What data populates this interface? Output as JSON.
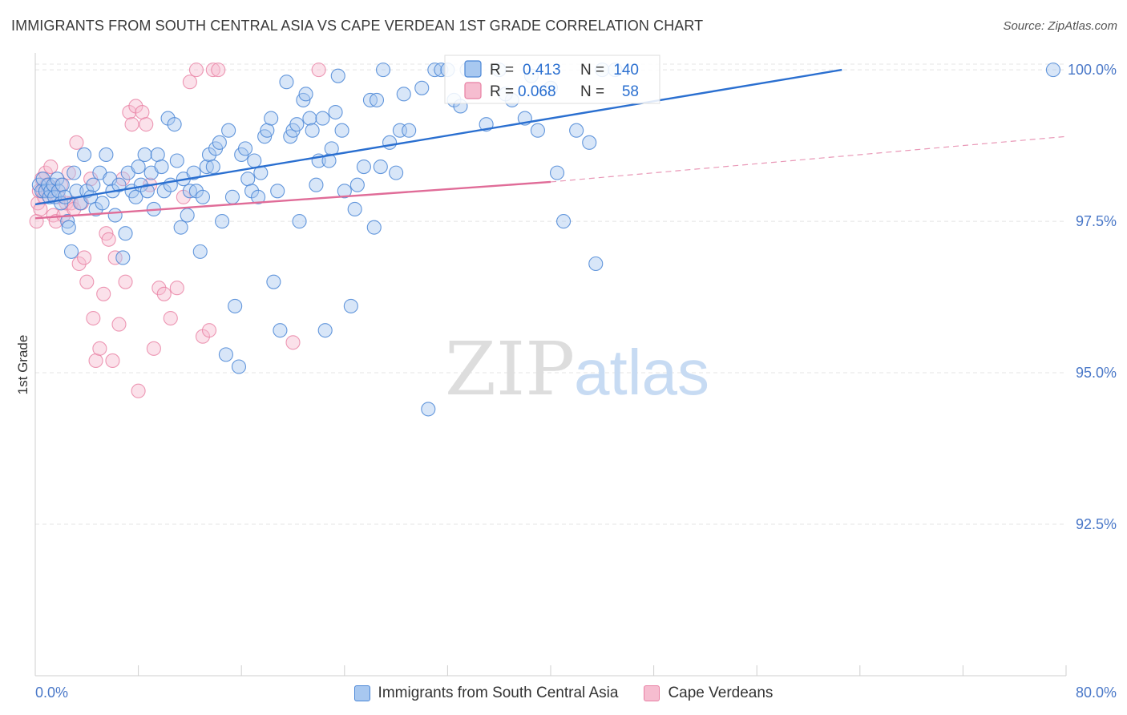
{
  "header": {
    "title": "IMMIGRANTS FROM SOUTH CENTRAL ASIA VS CAPE VERDEAN 1ST GRADE CORRELATION CHART",
    "source": "Source: ZipAtlas.com"
  },
  "watermark": {
    "zip": "ZIP",
    "atlas": "atlas"
  },
  "colors": {
    "blue_fill": "#a8c8f0",
    "blue_stroke": "#4a86d6",
    "blue_line": "#2a6fd0",
    "pink_fill": "#f6bdd0",
    "pink_stroke": "#e87fa3",
    "pink_line": "#e06c98",
    "axis_text": "#4a78c8"
  },
  "chart_data": {
    "type": "scatter",
    "title": "IMMIGRANTS FROM SOUTH CENTRAL ASIA VS CAPE VERDEAN 1ST GRADE CORRELATION CHART",
    "xlabel": "",
    "ylabel": "1st Grade",
    "xlim": [
      0,
      80
    ],
    "ylim": [
      90.0,
      100.2
    ],
    "x_tick_labels": {
      "min": "0.0%",
      "max": "80.0%"
    },
    "y_ticks": [
      {
        "value": 100.0,
        "label": "100.0%"
      },
      {
        "value": 97.5,
        "label": "97.5%"
      },
      {
        "value": 95.0,
        "label": "95.0%"
      },
      {
        "value": 92.5,
        "label": "92.5%"
      }
    ],
    "grid": true,
    "legend_position": "top-center",
    "stats": [
      {
        "r_label": "R =",
        "r_value": "0.413",
        "n_label": "N =",
        "n_value": "140"
      },
      {
        "r_label": "R =",
        "r_value": "0.068",
        "n_label": "N =",
        "n_value": "58"
      }
    ],
    "series": [
      {
        "name": "Immigrants from South Central Asia",
        "color": "#4a86d6",
        "trend": {
          "x0": 0,
          "y0": 97.78,
          "x1": 62.6,
          "y1": 100.0
        },
        "points": [
          [
            0.3,
            98.1
          ],
          [
            0.5,
            98.0
          ],
          [
            0.6,
            98.2
          ],
          [
            0.8,
            98.0
          ],
          [
            1.0,
            98.1
          ],
          [
            1.1,
            97.9
          ],
          [
            1.2,
            98.0
          ],
          [
            1.4,
            98.1
          ],
          [
            1.5,
            97.9
          ],
          [
            1.7,
            98.2
          ],
          [
            1.8,
            98.0
          ],
          [
            2.0,
            97.8
          ],
          [
            2.1,
            98.1
          ],
          [
            2.3,
            97.9
          ],
          [
            2.5,
            97.5
          ],
          [
            2.6,
            97.4
          ],
          [
            2.8,
            97.0
          ],
          [
            3.0,
            98.3
          ],
          [
            3.2,
            98.0
          ],
          [
            3.5,
            97.8
          ],
          [
            3.8,
            98.6
          ],
          [
            4.0,
            98.0
          ],
          [
            4.3,
            97.9
          ],
          [
            4.5,
            98.1
          ],
          [
            4.7,
            97.7
          ],
          [
            5.0,
            98.3
          ],
          [
            5.2,
            97.8
          ],
          [
            5.5,
            98.6
          ],
          [
            5.8,
            98.2
          ],
          [
            6.0,
            98.0
          ],
          [
            6.2,
            97.6
          ],
          [
            6.5,
            98.1
          ],
          [
            6.8,
            96.9
          ],
          [
            7.0,
            97.3
          ],
          [
            7.2,
            98.3
          ],
          [
            7.5,
            98.0
          ],
          [
            7.8,
            97.9
          ],
          [
            8.0,
            98.4
          ],
          [
            8.2,
            98.1
          ],
          [
            8.5,
            98.6
          ],
          [
            8.7,
            98.0
          ],
          [
            9.0,
            98.3
          ],
          [
            9.2,
            97.7
          ],
          [
            9.5,
            98.6
          ],
          [
            9.8,
            98.4
          ],
          [
            10.0,
            98.0
          ],
          [
            10.3,
            99.2
          ],
          [
            10.5,
            98.1
          ],
          [
            10.8,
            99.1
          ],
          [
            11.0,
            98.5
          ],
          [
            11.3,
            97.4
          ],
          [
            11.5,
            98.2
          ],
          [
            11.8,
            97.6
          ],
          [
            12.0,
            98.0
          ],
          [
            12.3,
            98.3
          ],
          [
            12.5,
            98.0
          ],
          [
            12.8,
            97.0
          ],
          [
            13.0,
            97.9
          ],
          [
            13.3,
            98.4
          ],
          [
            13.5,
            98.6
          ],
          [
            13.8,
            98.4
          ],
          [
            14.0,
            98.7
          ],
          [
            14.3,
            98.8
          ],
          [
            14.5,
            97.5
          ],
          [
            14.8,
            95.3
          ],
          [
            15.0,
            99.0
          ],
          [
            15.3,
            97.9
          ],
          [
            15.5,
            96.1
          ],
          [
            15.8,
            95.1
          ],
          [
            16.0,
            98.6
          ],
          [
            16.3,
            98.7
          ],
          [
            16.5,
            98.2
          ],
          [
            16.8,
            98.0
          ],
          [
            17.0,
            98.5
          ],
          [
            17.3,
            97.9
          ],
          [
            17.5,
            98.3
          ],
          [
            17.8,
            98.9
          ],
          [
            18.0,
            99.0
          ],
          [
            18.3,
            99.2
          ],
          [
            18.5,
            96.5
          ],
          [
            18.8,
            98.0
          ],
          [
            19.0,
            95.7
          ],
          [
            19.5,
            99.8
          ],
          [
            19.8,
            98.9
          ],
          [
            20.0,
            99.0
          ],
          [
            20.3,
            99.1
          ],
          [
            20.5,
            97.5
          ],
          [
            20.8,
            99.5
          ],
          [
            21.0,
            99.6
          ],
          [
            21.3,
            99.2
          ],
          [
            21.5,
            99.0
          ],
          [
            21.8,
            98.1
          ],
          [
            22.0,
            98.5
          ],
          [
            22.3,
            99.2
          ],
          [
            22.5,
            95.7
          ],
          [
            22.8,
            98.5
          ],
          [
            23.0,
            98.7
          ],
          [
            23.3,
            99.3
          ],
          [
            23.5,
            99.9
          ],
          [
            23.8,
            99.0
          ],
          [
            24.0,
            98.0
          ],
          [
            24.5,
            96.1
          ],
          [
            24.8,
            97.7
          ],
          [
            25.0,
            98.1
          ],
          [
            25.5,
            98.4
          ],
          [
            26.0,
            99.5
          ],
          [
            26.3,
            97.4
          ],
          [
            26.5,
            99.5
          ],
          [
            26.8,
            98.4
          ],
          [
            27.0,
            100.0
          ],
          [
            27.5,
            98.8
          ],
          [
            28.0,
            98.3
          ],
          [
            28.3,
            99.0
          ],
          [
            28.6,
            99.6
          ],
          [
            29.0,
            99.0
          ],
          [
            30.0,
            99.7
          ],
          [
            30.5,
            94.4
          ],
          [
            31.0,
            100.0
          ],
          [
            31.5,
            100.0
          ],
          [
            32.0,
            100.0
          ],
          [
            32.5,
            99.5
          ],
          [
            33.0,
            99.4
          ],
          [
            33.5,
            100.0
          ],
          [
            34.0,
            100.0
          ],
          [
            35.0,
            99.1
          ],
          [
            36.0,
            100.0
          ],
          [
            37.0,
            99.5
          ],
          [
            38.0,
            99.2
          ],
          [
            39.0,
            99.0
          ],
          [
            40.0,
            99.7
          ],
          [
            40.5,
            98.3
          ],
          [
            41.0,
            97.5
          ],
          [
            42.0,
            99.0
          ],
          [
            43.0,
            98.8
          ],
          [
            43.5,
            96.8
          ],
          [
            44.0,
            100.0
          ],
          [
            45.0,
            100.0
          ],
          [
            38.5,
            99.9
          ],
          [
            36.5,
            99.6
          ],
          [
            79.0,
            100.0
          ]
        ]
      },
      {
        "name": "Cape Verdeans",
        "color": "#e87fa3",
        "trend": {
          "x0": 0,
          "y0": 97.55,
          "x1": 40,
          "y1": 98.15
        },
        "trend_ext": {
          "x0": 40,
          "y0": 98.15,
          "x1": 80,
          "y1": 98.9
        },
        "points": [
          [
            0.1,
            97.5
          ],
          [
            0.2,
            97.8
          ],
          [
            0.3,
            98.0
          ],
          [
            0.4,
            97.7
          ],
          [
            0.5,
            98.2
          ],
          [
            0.6,
            98.0
          ],
          [
            0.7,
            97.9
          ],
          [
            0.8,
            98.3
          ],
          [
            0.9,
            98.1
          ],
          [
            1.0,
            98.0
          ],
          [
            1.2,
            98.4
          ],
          [
            1.4,
            97.6
          ],
          [
            1.6,
            97.5
          ],
          [
            1.8,
            97.9
          ],
          [
            2.0,
            98.1
          ],
          [
            2.2,
            97.6
          ],
          [
            2.4,
            97.8
          ],
          [
            2.6,
            98.3
          ],
          [
            2.8,
            97.8
          ],
          [
            3.0,
            97.7
          ],
          [
            3.2,
            98.8
          ],
          [
            3.4,
            96.8
          ],
          [
            3.6,
            97.8
          ],
          [
            3.8,
            96.9
          ],
          [
            4.0,
            96.5
          ],
          [
            4.3,
            98.2
          ],
          [
            4.5,
            95.9
          ],
          [
            4.7,
            95.2
          ],
          [
            5.0,
            95.4
          ],
          [
            5.3,
            96.3
          ],
          [
            5.5,
            97.3
          ],
          [
            5.7,
            97.2
          ],
          [
            6.0,
            95.2
          ],
          [
            6.2,
            96.9
          ],
          [
            6.5,
            95.8
          ],
          [
            6.8,
            98.2
          ],
          [
            7.0,
            96.5
          ],
          [
            7.3,
            99.3
          ],
          [
            7.5,
            99.1
          ],
          [
            7.8,
            99.4
          ],
          [
            8.0,
            94.7
          ],
          [
            8.3,
            99.3
          ],
          [
            8.6,
            99.1
          ],
          [
            8.9,
            98.1
          ],
          [
            9.2,
            95.4
          ],
          [
            9.6,
            96.4
          ],
          [
            10.0,
            96.3
          ],
          [
            10.5,
            95.9
          ],
          [
            11.0,
            96.4
          ],
          [
            11.5,
            97.9
          ],
          [
            12.0,
            99.8
          ],
          [
            12.5,
            100.0
          ],
          [
            13.0,
            95.6
          ],
          [
            13.5,
            95.7
          ],
          [
            13.8,
            100.0
          ],
          [
            14.2,
            100.0
          ],
          [
            20.0,
            95.5
          ],
          [
            22.0,
            100.0
          ]
        ]
      }
    ]
  },
  "bottom_legend": {
    "items": [
      {
        "label": "Immigrants from South Central Asia"
      },
      {
        "label": "Cape Verdeans"
      }
    ]
  }
}
